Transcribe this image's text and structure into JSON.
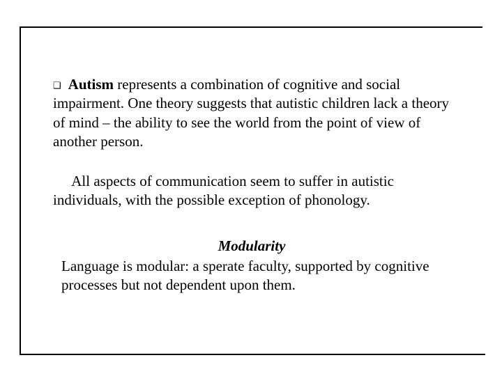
{
  "slide": {
    "bullet_marker": "❑",
    "p1_bold": "Autism",
    "p1_rest": " represents a combination of cognitive and social impairment. One theory suggests that autistic children lack a theory of mind – the ability to see the world from the point of view of another person.",
    "p2": "     All aspects of communication seem to suffer in autistic individuals, with the possible exception of phonology.",
    "heading": "Modularity",
    "p3": " Language is modular: a sperate faculty, supported by cognitive processes but not dependent upon them.",
    "colors": {
      "background": "#ffffff",
      "text": "#000000",
      "border": "#000000"
    },
    "fontsize_body": 21,
    "font_family": "Times New Roman"
  }
}
